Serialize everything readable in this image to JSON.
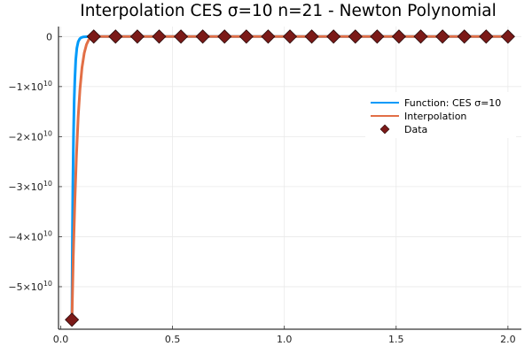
{
  "chart_data": {
    "type": "line",
    "title": "Interpolation CES σ=10 n=21 - Newton Polynomial",
    "xlabel": "",
    "ylabel": "",
    "xlim": [
      -0.01,
      2.06
    ],
    "ylim": [
      -58500000000,
      2000000000
    ],
    "grid": true,
    "legend_position": "right",
    "x_ticks": [
      {
        "value": 0.0,
        "label": "0.0"
      },
      {
        "value": 0.5,
        "label": "0.5"
      },
      {
        "value": 1.0,
        "label": "1.0"
      },
      {
        "value": 1.5,
        "label": "1.5"
      },
      {
        "value": 2.0,
        "label": "2.0"
      }
    ],
    "y_ticks": [
      {
        "value": 0,
        "base": "0",
        "exp": ""
      },
      {
        "value": -10000000000,
        "base": "−1×10",
        "exp": "10"
      },
      {
        "value": -20000000000,
        "base": "−2×10",
        "exp": "10"
      },
      {
        "value": -30000000000,
        "base": "−3×10",
        "exp": "10"
      },
      {
        "value": -40000000000,
        "base": "−4×10",
        "exp": "10"
      },
      {
        "value": -50000000000,
        "base": "−5×10",
        "exp": "10"
      }
    ],
    "series": [
      {
        "name": "Function: CES σ=10",
        "kind": "line",
        "color": "#009AF9",
        "x": [
          0.05,
          0.0505,
          0.052,
          0.054,
          0.057,
          0.06,
          0.063,
          0.067,
          0.072,
          0.078,
          0.085,
          0.092,
          0.1,
          0.12,
          0.15,
          0.2,
          0.5,
          1.0,
          1.5,
          2.0
        ],
        "y": [
          -56600000000,
          -52000000000,
          -41200000000,
          -30300000000,
          -19800000000,
          -12900000000,
          -8600000000,
          -4650000000,
          -2300000000,
          -1050000000,
          -440000000,
          -190000000,
          -80000000,
          -13000000,
          -1000000,
          0,
          0,
          0,
          0,
          0
        ]
      },
      {
        "name": "Interpolation",
        "kind": "line",
        "color": "#E26F46",
        "x": [
          0.05,
          0.056,
          0.063,
          0.07,
          0.078,
          0.086,
          0.095,
          0.105,
          0.115,
          0.125,
          0.135,
          0.145,
          0.2,
          0.5,
          1.0,
          1.5,
          2.0
        ],
        "y": [
          -56600000000,
          -44000000000,
          -33000000000,
          -24000000000,
          -16000000000,
          -10500000000,
          -6200000000,
          -3300000000,
          -1600000000,
          -650000000,
          -200000000,
          0,
          0,
          0,
          0,
          0,
          0
        ]
      },
      {
        "name": "Data",
        "kind": "scatter",
        "marker": "diamond",
        "color": "#7B1A18",
        "x": [
          0.05,
          0.1475,
          0.245,
          0.3425,
          0.44,
          0.5375,
          0.635,
          0.7325,
          0.83,
          0.9275,
          1.025,
          1.1225,
          1.22,
          1.3175,
          1.415,
          1.5125,
          1.61,
          1.7075,
          1.805,
          1.9025,
          2.0
        ],
        "y": [
          -56600000000,
          0,
          0,
          0,
          0,
          0,
          0,
          0,
          0,
          0,
          0,
          0,
          0,
          0,
          0,
          0,
          0,
          0,
          0,
          0,
          0
        ]
      }
    ]
  }
}
